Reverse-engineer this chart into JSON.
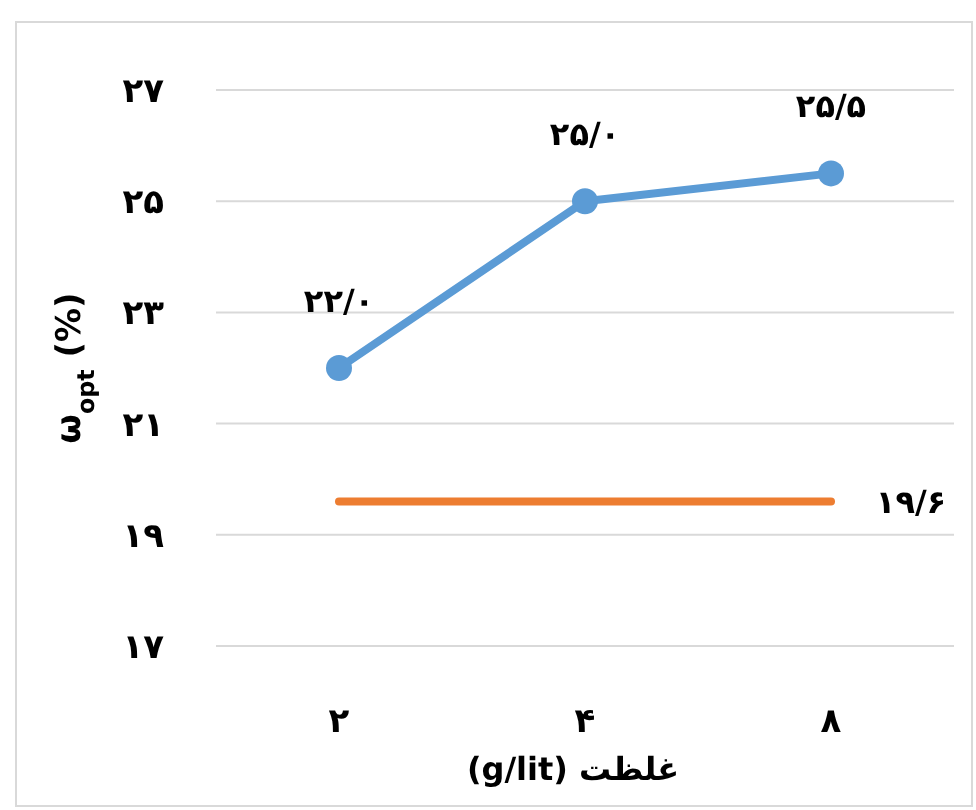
{
  "chart_data": {
    "type": "line",
    "xlabel": "غلظت (g/lit)",
    "ylabel": "ω$_{opt}$ (%)",
    "categories": [
      "۲",
      "۴",
      "۸"
    ],
    "series": [
      {
        "color": "#5b9bd5",
        "values": [
          22.0,
          25.0,
          25.5
        ],
        "marker": "circle",
        "value_labels": [
          "۲۲/۰",
          "۲۵/۰",
          "۲۵/۵"
        ]
      },
      {
        "color": "#ed7d31",
        "values": [
          19.6,
          19.6,
          19.6
        ],
        "marker": "none"
      }
    ],
    "ylim": [
      17,
      27
    ],
    "yticks": [
      {
        "value": 17,
        "label": "۱۷"
      },
      {
        "value": 19,
        "label": "۱۹"
      },
      {
        "value": 21,
        "label": "۲۱"
      },
      {
        "value": 23,
        "label": "۲۳"
      },
      {
        "value": 25,
        "label": "۲۵"
      },
      {
        "value": 27,
        "label": "۲۷"
      }
    ],
    "grid": "y",
    "annotations": [
      {
        "text": "۱۹/۶",
        "x": "۸",
        "y": 19.6
      }
    ]
  }
}
